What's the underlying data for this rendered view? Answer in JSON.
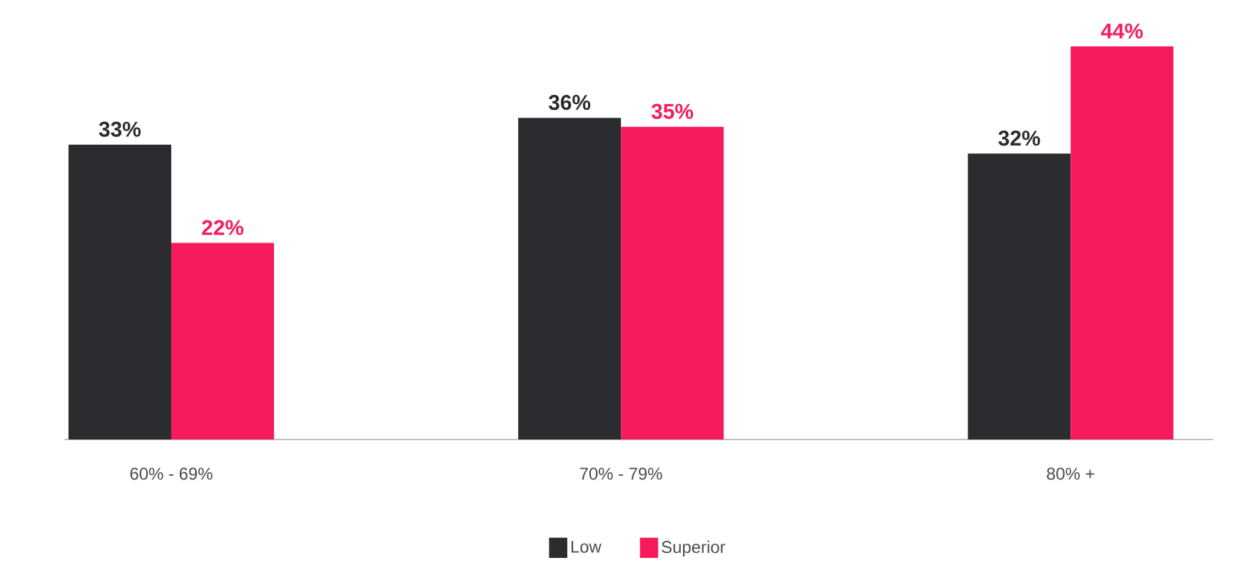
{
  "chart_data": {
    "type": "bar",
    "categories": [
      "60% - 69%",
      "70% - 79%",
      "80% +"
    ],
    "series": [
      {
        "name": "Low",
        "color": "#2b2c30",
        "values": [
          33,
          36,
          32
        ],
        "value_labels": [
          "33%",
          "36%",
          "32%"
        ]
      },
      {
        "name": "Superior",
        "color": "#f71b5e",
        "values": [
          22,
          35,
          44
        ],
        "value_labels": [
          "22%",
          "35%",
          "44%"
        ]
      }
    ],
    "legend": "bottom"
  }
}
